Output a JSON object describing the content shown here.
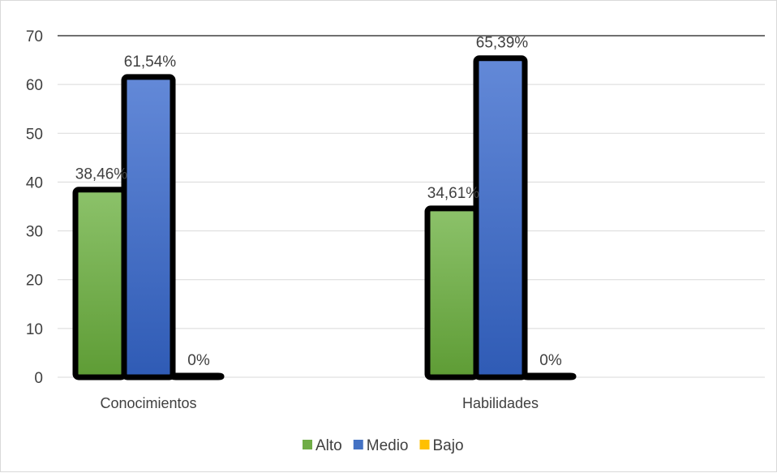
{
  "chart_data": {
    "type": "bar",
    "categories": [
      "Conocimientos",
      "Habilidades"
    ],
    "series": [
      {
        "name": "Alto",
        "values": [
          38.46,
          34.61
        ],
        "labels": [
          "38,46%",
          "34,61%"
        ],
        "color": "#70ad47"
      },
      {
        "name": "Medio",
        "values": [
          61.54,
          65.39
        ],
        "labels": [
          "61,54%",
          "65,39%"
        ],
        "color": "#4472c4"
      },
      {
        "name": "Bajo",
        "values": [
          0,
          0
        ],
        "labels": [
          "0%",
          "0%"
        ],
        "color": "#ffc000"
      }
    ],
    "ylim": [
      0,
      70
    ],
    "yticks": [
      0,
      10,
      20,
      30,
      40,
      50,
      60,
      70
    ],
    "grid": true,
    "legend_position": "bottom",
    "title": "",
    "xlabel": "",
    "ylabel": ""
  }
}
